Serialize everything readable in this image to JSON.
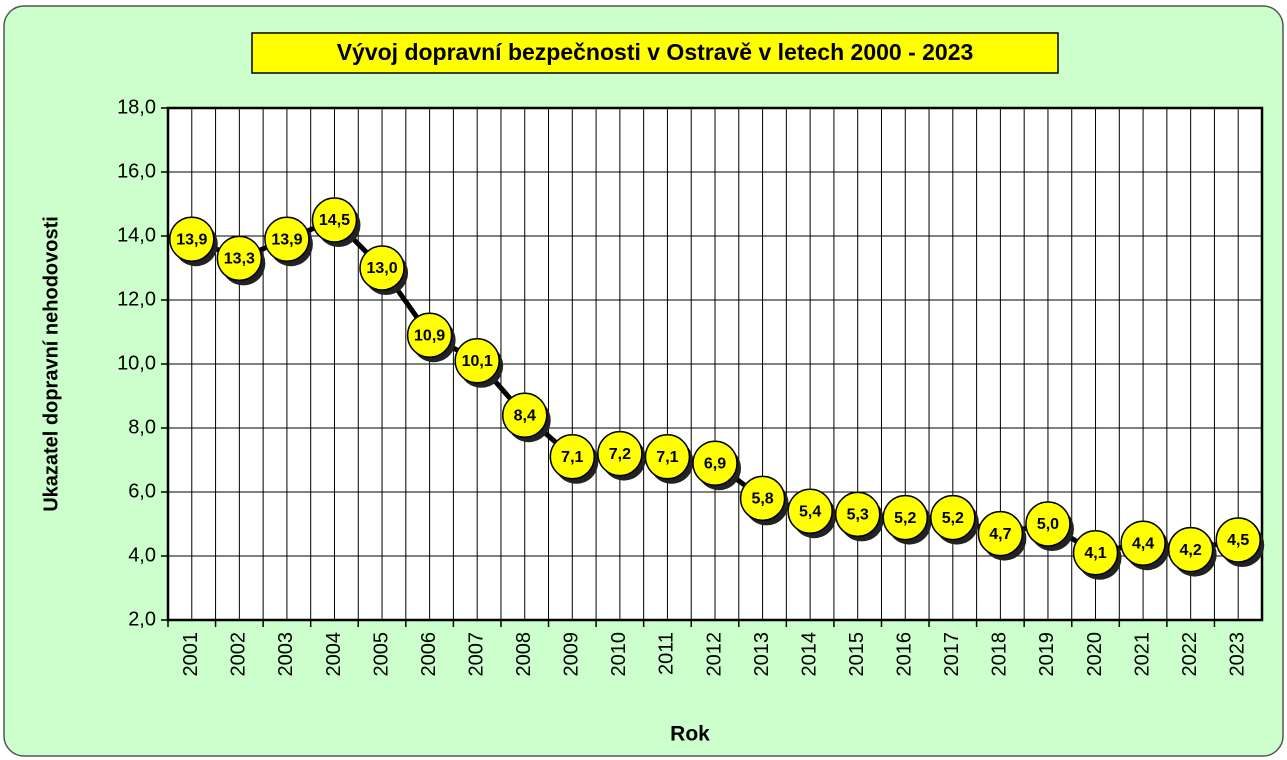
{
  "chart_data": {
    "type": "line",
    "title": "Vývoj dopravní bezpečnosti v Ostravě v letech 2000 - 2023",
    "x_label": "Rok",
    "y_label": "Ukazatel dopravní  nehodovosti",
    "categories": [
      "2001",
      "2002",
      "2003",
      "2004",
      "2005",
      "2006",
      "2007",
      "2008",
      "2009",
      "2010",
      "2011",
      "2012",
      "2013",
      "2014",
      "2015",
      "2016",
      "2017",
      "2018",
      "2019",
      "2020",
      "2021",
      "2022",
      "2023"
    ],
    "values": [
      13.9,
      13.3,
      13.9,
      14.5,
      13.0,
      10.9,
      10.1,
      8.4,
      7.1,
      7.2,
      7.1,
      6.9,
      5.8,
      5.4,
      5.3,
      5.2,
      5.2,
      4.7,
      5.0,
      4.1,
      4.4,
      4.2,
      4.5
    ],
    "value_labels": [
      "13,9",
      "13,3",
      "13,9",
      "14,5",
      "13,0",
      "10,9",
      "10,1",
      "8,4",
      "7,1",
      "7,2",
      "7,1",
      "6,9",
      "5,8",
      "5,4",
      "5,3",
      "5,2",
      "5,2",
      "4,7",
      "5,0",
      "4,1",
      "4,4",
      "4,2",
      "4,5"
    ],
    "color": "#000000",
    "marker_color": "#ffff00",
    "ylim": [
      2,
      18
    ],
    "yticks": [
      {
        "value": 2,
        "label": "2,0"
      },
      {
        "value": 4,
        "label": "4,0"
      },
      {
        "value": 6,
        "label": "6,0"
      },
      {
        "value": 8,
        "label": "8,0"
      },
      {
        "value": 10,
        "label": "10,0"
      },
      {
        "value": 12,
        "label": "12,0"
      },
      {
        "value": 14,
        "label": "14,0"
      },
      {
        "value": 16,
        "label": "16,0"
      },
      {
        "value": 18,
        "label": "18,0"
      }
    ],
    "grid": true
  }
}
